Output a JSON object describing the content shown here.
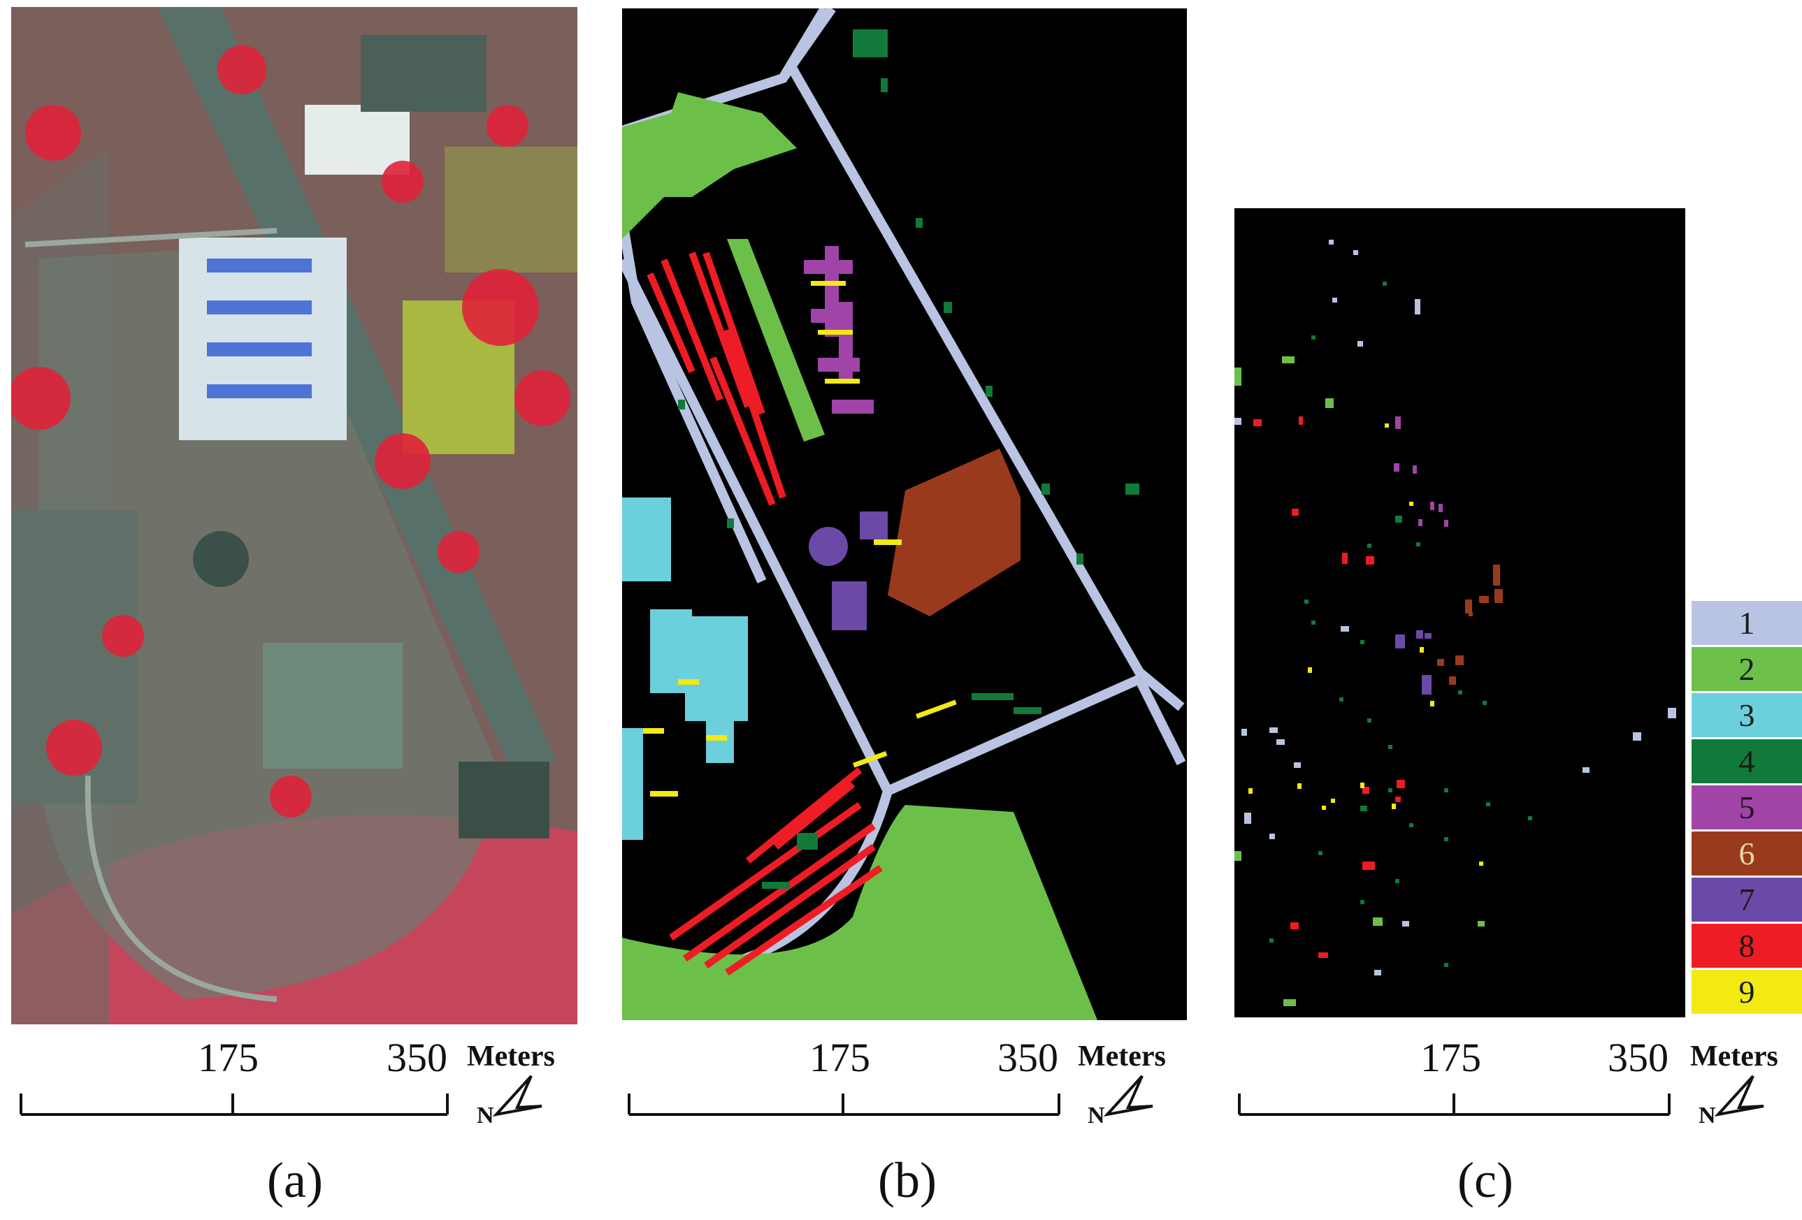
{
  "panels": [
    {
      "caption": "(a)",
      "tick_mid": "175",
      "tick_end": "350",
      "unit": "Meters",
      "north": "N"
    },
    {
      "caption": "(b)",
      "tick_mid": "175",
      "tick_end": "350",
      "unit": "Meters",
      "north": "N"
    },
    {
      "caption": "(c)",
      "tick_mid": "175",
      "tick_end": "350",
      "unit": "Meters",
      "north": "N"
    }
  ],
  "legend": [
    {
      "label": "1",
      "color": "#b8c4e2"
    },
    {
      "label": "2",
      "color": "#6cc04a"
    },
    {
      "label": "3",
      "color": "#6ccfdc"
    },
    {
      "label": "4",
      "color": "#117a3a"
    },
    {
      "label": "5",
      "color": "#a044a8"
    },
    {
      "label": "6",
      "color": "#9a3a1c"
    },
    {
      "label": "7",
      "color": "#6a4aa6"
    },
    {
      "label": "8",
      "color": "#ee1c24"
    },
    {
      "label": "9",
      "color": "#f2ea12"
    }
  ]
}
